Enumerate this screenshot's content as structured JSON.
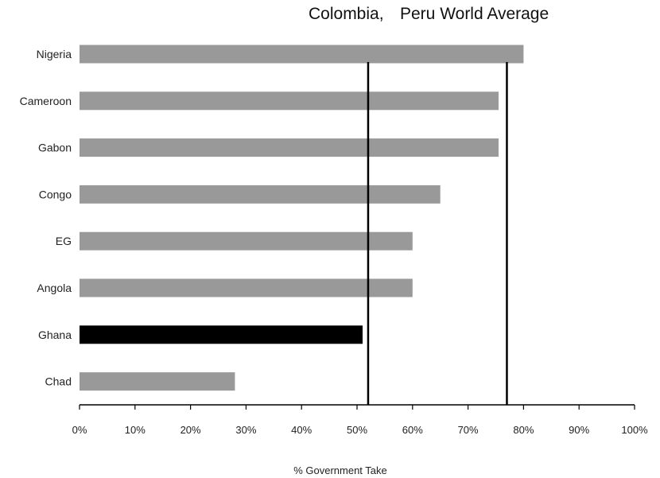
{
  "chart_data": {
    "type": "bar",
    "orientation": "horizontal",
    "xlabel": "% Government Take",
    "xlim": [
      0,
      100
    ],
    "xticks": [
      "0%",
      "10%",
      "20%",
      "30%",
      "40%",
      "50%",
      "60%",
      "70%",
      "80%",
      "90%",
      "100%"
    ],
    "categories": [
      "Nigeria",
      "Cameroon",
      "Gabon",
      "Congo",
      "EG",
      "Angola",
      "Ghana",
      "Chad"
    ],
    "values": [
      80,
      75.5,
      75.5,
      65,
      60,
      60,
      51,
      28
    ],
    "highlight": "Ghana",
    "bar_color": "#999999",
    "highlight_color": "#000000",
    "reference_lines": [
      {
        "label": "Colombia,",
        "value": 52
      },
      {
        "label": "Peru World Average",
        "value": 77
      }
    ]
  }
}
